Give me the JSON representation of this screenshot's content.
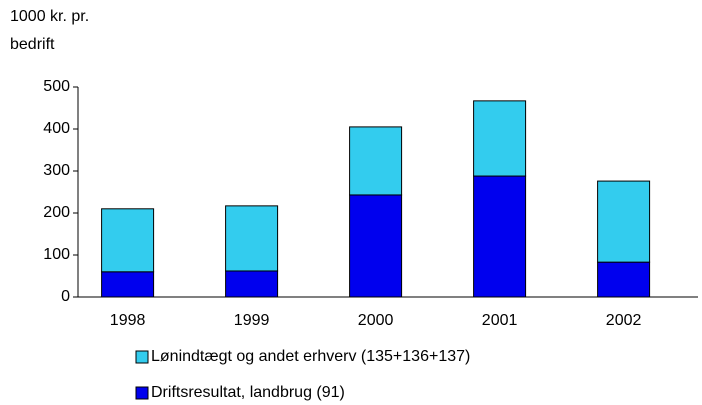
{
  "chart_data": {
    "type": "stacked_bar",
    "ylabel": [
      "1000 kr. pr.",
      "bedrift"
    ],
    "categories": [
      "1998",
      "1999",
      "2000",
      "2001",
      "2002"
    ],
    "series": [
      {
        "name": "Lønindtægt og andet erhverv (135+136+137)",
        "color": "#33ccee",
        "values": [
          150,
          155,
          162,
          179,
          193
        ]
      },
      {
        "name": "Driftsresultat, landbrug (91)",
        "color": "#0000ee",
        "values": [
          60,
          62,
          243,
          288,
          83
        ]
      }
    ],
    "ylim": [
      0,
      500
    ],
    "yticks": [
      0,
      100,
      200,
      300,
      400,
      500
    ]
  }
}
